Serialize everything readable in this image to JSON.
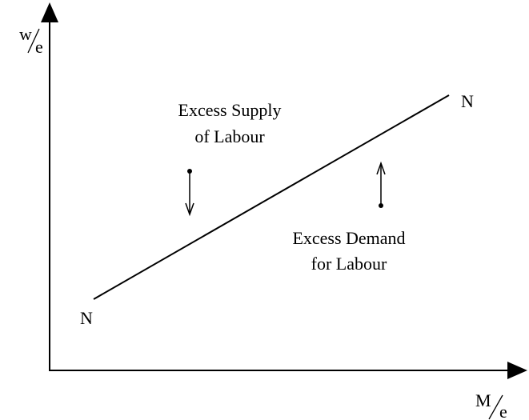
{
  "y_axis_label": {
    "numerator": "w",
    "denominator": "e"
  },
  "x_axis_label": {
    "numerator": "M",
    "denominator": "e"
  },
  "curve": {
    "start_label": "N",
    "end_label": "N"
  },
  "regions": [
    {
      "lines": [
        "Excess Supply",
        "of Labour"
      ]
    },
    {
      "lines": [
        "Excess Demand",
        "for Labour"
      ]
    }
  ]
}
